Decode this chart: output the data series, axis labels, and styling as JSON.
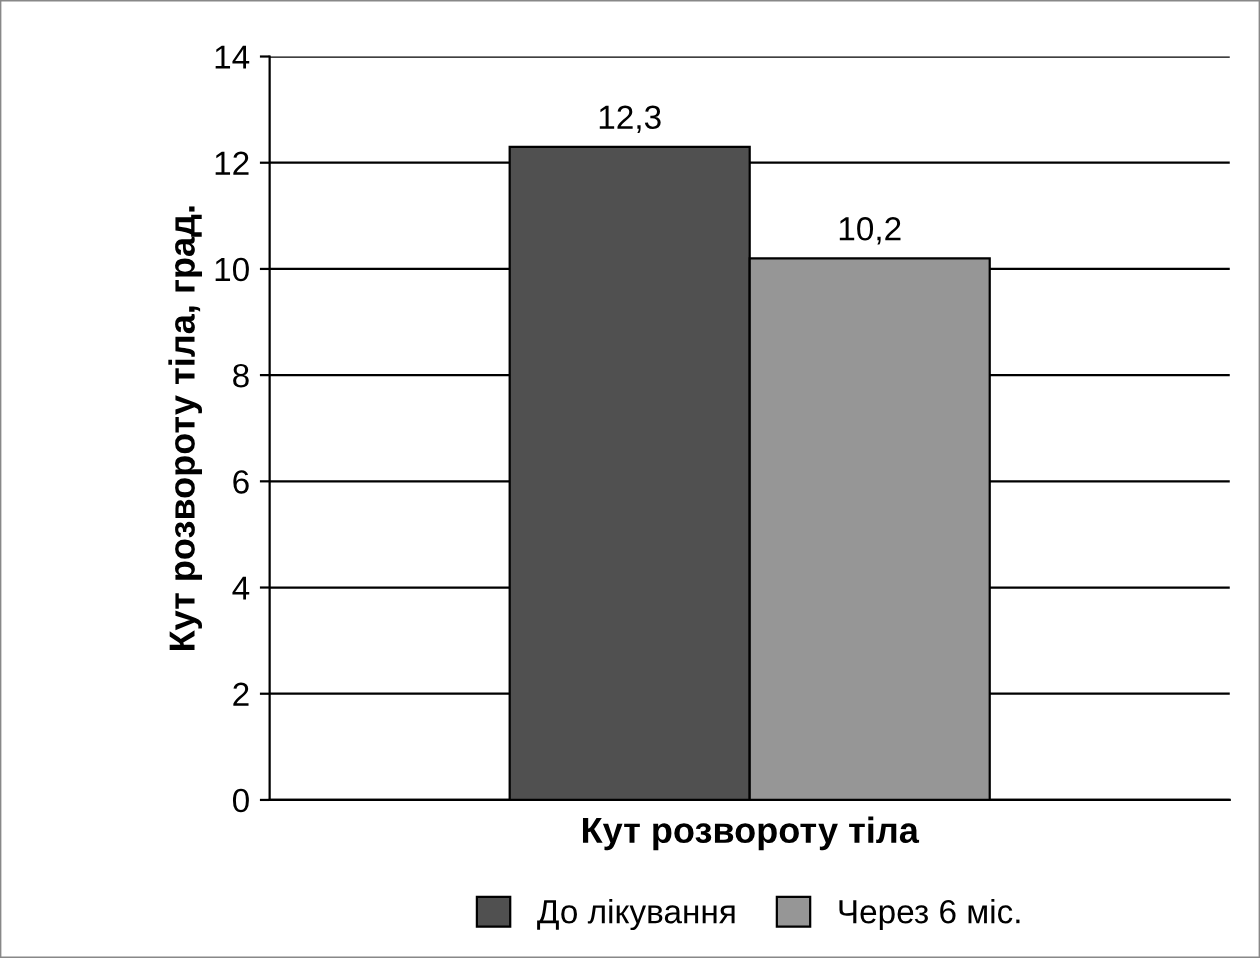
{
  "chart_data": {
    "type": "bar",
    "ylabel": "Кут розвороту тіла, град.",
    "categories": [
      "Кут розвороту тіла"
    ],
    "series": [
      {
        "name": "До лікування",
        "color": "#505050",
        "values": [
          12.3
        ],
        "value_labels": [
          "12,3"
        ]
      },
      {
        "name": "Через 6 міс.",
        "color": "#969696",
        "values": [
          10.2
        ],
        "value_labels": [
          "10,2"
        ]
      }
    ],
    "ylim": [
      0,
      14
    ],
    "yticks": [
      0,
      2,
      4,
      6,
      8,
      10,
      12,
      14
    ],
    "grid": "y",
    "legend": "bottom"
  }
}
